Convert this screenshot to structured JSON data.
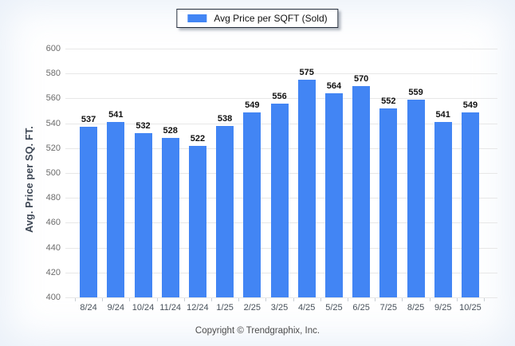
{
  "legend": {
    "label": "Avg Price per SQFT (Sold)",
    "swatch_color": "#4285f4"
  },
  "footer": {
    "copyright": "Copyright © Trendgraphix, Inc."
  },
  "chart_data": {
    "type": "bar",
    "title": "",
    "series_name": "Avg Price per SQFT (Sold)",
    "categories": [
      "8/24",
      "9/24",
      "10/24",
      "11/24",
      "12/24",
      "1/25",
      "2/25",
      "3/25",
      "4/25",
      "5/25",
      "6/25",
      "7/25",
      "8/25",
      "9/25",
      "10/25"
    ],
    "values": [
      537,
      541,
      532,
      528,
      522,
      538,
      549,
      556,
      575,
      564,
      570,
      552,
      559,
      541,
      549
    ],
    "xlabel": "",
    "ylabel": "Avg. Price per SQ. FT.",
    "ylim": [
      400,
      600
    ],
    "yticks": [
      400,
      420,
      440,
      460,
      480,
      500,
      520,
      540,
      560,
      580,
      600
    ],
    "grid": "horizontal",
    "legend_position": "top-center",
    "value_labels": true,
    "bar_color": "#4285f4"
  },
  "colors": {
    "bar": "#4285f4",
    "grid_line": "#e7e7e7",
    "axis_tick_text": "#6b6b6b",
    "x_tick_text": "#47505a",
    "value_label_text": "#111111",
    "axis_title_text": "#3c4654",
    "footer_text": "#4b4b4b",
    "legend_border": "#222c3a",
    "vignette": "#cbdbf0"
  }
}
